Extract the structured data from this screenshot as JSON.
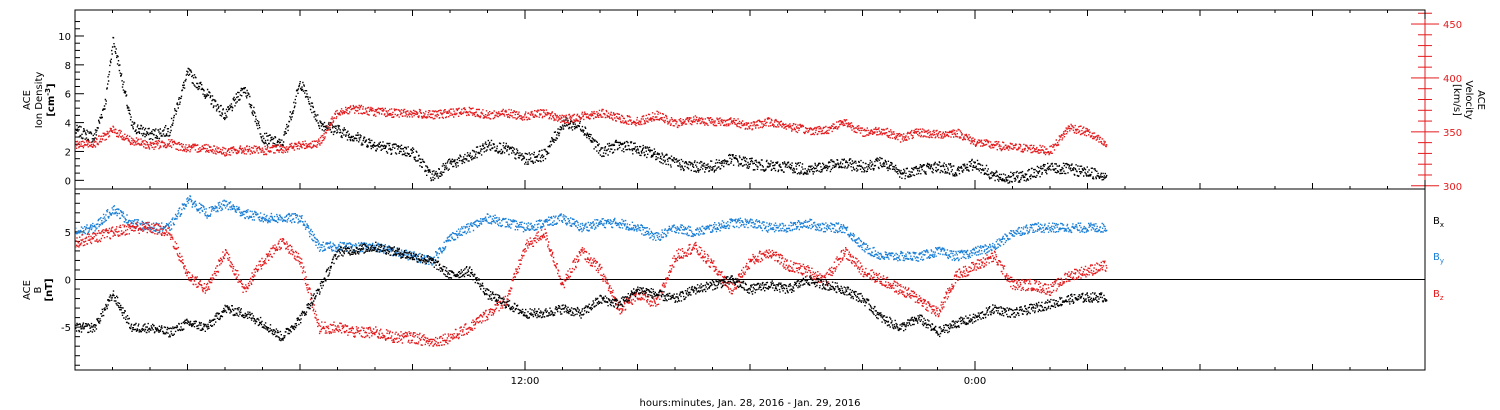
{
  "colors": {
    "black": "#000000",
    "red": "#e41a1c",
    "blue": "#1a7fd6"
  },
  "xaxis": {
    "title": "hours:minutes, Jan. 28, 2016 - Jan. 29, 2016",
    "range_hours": [
      0,
      36
    ],
    "major_ticks": [
      {
        "hour": 12,
        "label": "12:00"
      },
      {
        "hour": 24,
        "label": "0:00"
      }
    ],
    "minor_tick_step_hours": 1
  },
  "panel1": {
    "left_label": [
      "ACE",
      "Ion Density"
    ],
    "left_unit": "[cm^-3]",
    "right_label": [
      "ACE",
      "Velocity"
    ],
    "right_unit": "[km/s]",
    "left_ticks": [
      "0",
      "2",
      "4",
      "6",
      "8",
      "10"
    ],
    "right_ticks": [
      "300",
      "350",
      "400",
      "450"
    ]
  },
  "panel2": {
    "left_label": [
      "ACE",
      "B"
    ],
    "left_unit": "[nT]",
    "left_ticks": [
      "-5",
      "0",
      "5"
    ],
    "legend": [
      {
        "base": "B",
        "sub": "x",
        "color": "#000000"
      },
      {
        "base": "B",
        "sub": "y",
        "color": "#1a7fd6"
      },
      {
        "base": "B",
        "sub": "z",
        "color": "#e41a1c"
      }
    ]
  },
  "chart_data": [
    {
      "type": "scatter",
      "x_unit": "hours from 0:00 Jan. 28, 2016",
      "ylim": [
        -0.6,
        11.8
      ],
      "series": [
        {
          "axis": "left",
          "color": "#000000",
          "x": [
            0,
            0.5,
            0.8,
            1.0,
            1.2,
            1.5,
            2.0,
            2.5,
            3.0,
            3.5,
            4.0,
            4.5,
            5.0,
            5.5,
            6.0,
            6.5,
            7.0,
            7.5,
            8.0,
            8.5,
            9.0,
            9.5,
            10.0,
            10.5,
            11.0,
            11.5,
            12.0,
            12.5,
            13.0,
            13.5,
            14.0,
            14.5,
            15.0,
            15.5,
            16.0,
            16.5,
            17.0,
            17.5,
            18.0,
            18.5,
            19.0,
            19.5,
            20.0,
            20.5,
            21.0,
            21.5,
            22.0,
            22.5,
            23.0,
            23.5,
            24.0,
            24.5,
            25.0,
            25.5,
            26.0,
            26.5,
            27.0,
            27.5
          ],
          "y": [
            3.5,
            3.0,
            5.5,
            9.8,
            7.5,
            3.8,
            3.2,
            3.5,
            7.5,
            6.0,
            4.5,
            6.5,
            3.0,
            2.5,
            6.8,
            4.0,
            3.5,
            3.0,
            2.5,
            2.2,
            2.0,
            0.3,
            1.2,
            1.6,
            2.5,
            2.2,
            1.5,
            1.8,
            4.0,
            3.8,
            2.0,
            2.5,
            2.2,
            1.8,
            1.2,
            1.0,
            1.0,
            1.5,
            1.2,
            1.0,
            1.0,
            0.8,
            1.0,
            1.2,
            1.0,
            1.3,
            0.5,
            0.8,
            1.0,
            0.7,
            1.2,
            0.3,
            0.2,
            0.5,
            0.9,
            0.8,
            0.6,
            0.4
          ]
        },
        {
          "axis": "right",
          "color": "#e41a1c",
          "ylim": [
            297,
            463
          ],
          "x": [
            0,
            0.5,
            1.0,
            1.5,
            2.0,
            2.5,
            3.0,
            3.5,
            4.0,
            4.5,
            5.0,
            5.5,
            6.0,
            6.5,
            7.0,
            7.5,
            8.0,
            8.5,
            9.0,
            9.5,
            10.0,
            10.5,
            11.0,
            11.5,
            12.0,
            12.5,
            13.0,
            13.5,
            14.0,
            14.5,
            15.0,
            15.5,
            16.0,
            16.5,
            17.0,
            17.5,
            18.0,
            18.5,
            19.0,
            19.5,
            20.0,
            20.5,
            21.0,
            21.5,
            22.0,
            22.5,
            23.0,
            23.5,
            24.0,
            24.5,
            25.0,
            25.5,
            26.0,
            26.5,
            27.0,
            27.5
          ],
          "y": [
            338,
            340,
            352,
            342,
            338,
            340,
            335,
            336,
            332,
            334,
            333,
            335,
            338,
            340,
            370,
            372,
            369,
            368,
            368,
            366,
            368,
            370,
            366,
            368,
            365,
            368,
            362,
            365,
            368,
            363,
            360,
            366,
            358,
            362,
            360,
            360,
            356,
            360,
            356,
            352,
            352,
            360,
            350,
            352,
            345,
            350,
            348,
            350,
            341,
            338,
            336,
            335,
            333,
            355,
            350,
            338
          ]
        }
      ]
    },
    {
      "type": "scatter",
      "x_unit": "hours from 0:00 Jan. 28, 2016",
      "ylim": [
        -9.5,
        9.5
      ],
      "series": [
        {
          "name": "Bx",
          "color": "#000000",
          "x": [
            0,
            0.5,
            1.0,
            1.5,
            2.0,
            2.5,
            3.0,
            3.5,
            4.0,
            4.5,
            5.0,
            5.5,
            6.0,
            6.5,
            7.0,
            7.5,
            8.0,
            8.5,
            9.0,
            9.5,
            10.0,
            10.5,
            11.0,
            11.5,
            12.0,
            12.5,
            13.0,
            13.5,
            14.0,
            14.5,
            15.0,
            15.5,
            16.0,
            16.5,
            17.0,
            17.5,
            18.0,
            18.5,
            19.0,
            19.5,
            20.0,
            20.5,
            21.0,
            21.5,
            22.0,
            22.5,
            23.0,
            23.5,
            24.0,
            24.5,
            25.0,
            25.5,
            26.0,
            26.5,
            27.0,
            27.5
          ],
          "y": [
            -5.0,
            -5.0,
            -1.5,
            -5.0,
            -5.0,
            -5.5,
            -4.5,
            -5.0,
            -3.0,
            -3.5,
            -4.5,
            -6.0,
            -4.0,
            -1.0,
            3.0,
            3.2,
            3.5,
            3.0,
            2.5,
            2.0,
            0.5,
            1.0,
            -1.5,
            -2.5,
            -3.5,
            -3.5,
            -3.0,
            -3.5,
            -2.0,
            -2.5,
            -1.0,
            -1.5,
            -2.0,
            -1.0,
            -0.5,
            0.0,
            -1.0,
            -0.5,
            -1.0,
            0.0,
            -0.5,
            -1.0,
            -2.0,
            -4.0,
            -5.0,
            -4.0,
            -5.5,
            -4.5,
            -4.0,
            -3.0,
            -3.5,
            -3.0,
            -2.5,
            -2.0,
            -1.8,
            -1.8
          ]
        },
        {
          "name": "By",
          "color": "#1a7fd6",
          "x": [
            0,
            0.5,
            1.0,
            1.5,
            2.0,
            2.5,
            3.0,
            3.5,
            4.0,
            4.5,
            5.0,
            5.5,
            6.0,
            6.5,
            7.0,
            7.5,
            8.0,
            8.5,
            9.0,
            9.5,
            10.0,
            10.5,
            11.0,
            11.5,
            12.0,
            12.5,
            13.0,
            13.5,
            14.0,
            14.5,
            15.0,
            15.5,
            16.0,
            16.5,
            17.0,
            17.5,
            18.0,
            18.5,
            19.0,
            19.5,
            20.0,
            20.5,
            21.0,
            21.5,
            22.0,
            22.5,
            23.0,
            23.5,
            24.0,
            24.5,
            25.0,
            25.5,
            26.0,
            26.5,
            27.0,
            27.5
          ],
          "y": [
            5.0,
            5.5,
            7.5,
            6.0,
            5.5,
            5.5,
            8.5,
            7.0,
            8.0,
            7.0,
            6.5,
            6.5,
            6.5,
            3.5,
            3.5,
            3.5,
            3.5,
            3.0,
            2.5,
            2.0,
            4.5,
            5.5,
            6.5,
            6.0,
            5.5,
            6.0,
            6.5,
            5.5,
            6.0,
            6.0,
            5.5,
            4.5,
            5.5,
            5.0,
            5.5,
            6.0,
            6.0,
            5.5,
            5.5,
            6.0,
            5.5,
            5.5,
            3.5,
            2.5,
            2.5,
            2.5,
            3.0,
            2.5,
            3.0,
            3.5,
            5.0,
            5.5,
            5.5,
            5.5,
            5.5,
            5.5
          ]
        },
        {
          "name": "Bz",
          "color": "#e41a1c",
          "x": [
            0,
            0.5,
            1.0,
            1.5,
            2.0,
            2.5,
            3.0,
            3.5,
            4.0,
            4.5,
            5.0,
            5.5,
            6.0,
            6.5,
            7.0,
            7.5,
            8.0,
            8.5,
            9.0,
            9.5,
            10.0,
            10.5,
            11.0,
            11.5,
            12.0,
            12.5,
            13.0,
            13.5,
            14.0,
            14.5,
            15.0,
            15.5,
            16.0,
            16.5,
            17.0,
            17.5,
            18.0,
            18.5,
            19.0,
            19.5,
            20.0,
            20.5,
            21.0,
            21.5,
            22.0,
            22.5,
            23.0,
            23.5,
            24.0,
            24.5,
            25.0,
            25.5,
            26.0,
            26.5,
            27.0,
            27.5
          ],
          "y": [
            4.0,
            4.5,
            5.0,
            5.5,
            5.5,
            5.0,
            0.5,
            -1.0,
            3.0,
            -1.0,
            2.0,
            4.0,
            2.0,
            -5.0,
            -5.0,
            -5.5,
            -5.5,
            -6.0,
            -6.0,
            -6.5,
            -6.0,
            -5.0,
            -3.5,
            -2.0,
            3.5,
            5.0,
            -0.5,
            3.0,
            1.0,
            -3.0,
            -1.5,
            -2.5,
            2.5,
            3.5,
            1.5,
            -1.0,
            2.0,
            3.0,
            1.5,
            1.0,
            0.0,
            3.0,
            1.0,
            0.0,
            -1.0,
            -2.0,
            -3.5,
            0.5,
            1.5,
            2.5,
            -0.5,
            -0.5,
            -1.0,
            0.5,
            1.0,
            1.5
          ]
        }
      ]
    }
  ]
}
